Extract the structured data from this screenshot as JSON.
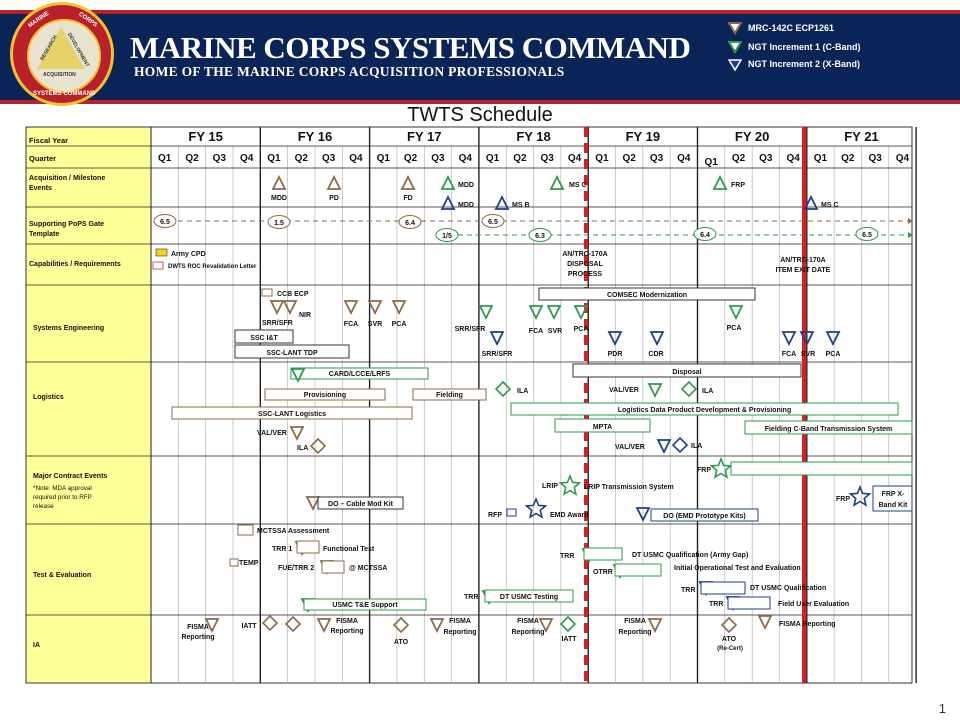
{
  "header": {
    "title": "MARINE CORPS SYSTEMS COMMAND",
    "subtitle": "HOME OF THE MARINE CORPS ACQUISITION PROFESSIONALS",
    "seal_text": [
      "MARINE",
      "CORPS",
      "RESEARCH",
      "DEVELOPMENT",
      "ACQUISITION",
      "SYSTEMS COMMAND"
    ],
    "legend": [
      {
        "label": "MRC-142C ECP1261",
        "color": "#8b6b4a",
        "icon": "triangle-down-icon"
      },
      {
        "label": "NGT Increment 1 (C-Band)",
        "color": "#2e9a4a",
        "icon": "triangle-down-icon"
      },
      {
        "label": "NGT Increment 2 (X-Band)",
        "color": "#1f3f8a",
        "icon": "triangle-down-icon"
      }
    ]
  },
  "chart_title": "TWTS Schedule",
  "page_number": "1",
  "colors": {
    "brown": "#8b6b4a",
    "green": "#2e9a4a",
    "blue": "#1f3f8a",
    "red": "#d81e1e",
    "label_bg": "#ffff99",
    "navy": "#0b2458"
  },
  "table": {
    "fiscal_year_label": "Fiscal Year",
    "quarter_label": "Quarter",
    "fiscal_years": [
      "FY 15",
      "FY 16",
      "FY 17",
      "FY 18",
      "FY 19",
      "FY 20",
      "FY 21"
    ],
    "quarters": [
      "Q1",
      "Q2",
      "Q3",
      "Q4"
    ],
    "rows": [
      "Acquisition / Milestone Events",
      "Supporting PoPS Gate Template",
      "Capabilities / Requirements",
      "Systems  Engineering",
      "Logistics",
      "Major Contract Events",
      "Test & Evaluation",
      "IA"
    ],
    "row_note": "*Note: MDA approval required prior to RFP release"
  },
  "milestones": {
    "brown": [
      "MDD",
      "PD",
      "FD"
    ],
    "green": [
      "MDD",
      "MS C",
      "FRP"
    ],
    "blue": [
      "MDD",
      "MS B",
      "MS C"
    ]
  },
  "pops": {
    "brown": [
      "6.5",
      "1.5",
      "6.4",
      "6.5"
    ],
    "green": [
      "1/5",
      "6.3",
      "6.4",
      "6.5"
    ]
  },
  "capabilities": {
    "items": [
      "Army  CPD",
      "DWTS ROC Revalidation Letter"
    ],
    "disposal": [
      "AN/TRC-170A",
      "DISPOSAL",
      "PROCESS"
    ],
    "exit": [
      "AN/TRC-170A",
      "ITEM  EXIT  DATE"
    ]
  },
  "systems_engineering": {
    "brown": [
      "CCB ECP",
      "SRR/SFR",
      "NIR",
      "FCA",
      "SVR",
      "PCA"
    ],
    "bars": [
      "SSC I&T",
      "SSC-LANT  TDP",
      "COMSEC  Modernization"
    ],
    "green": [
      "SRR/SFR",
      "FCA",
      "SVR",
      "PCA",
      "PCA"
    ],
    "blue": [
      "SRR/SFR",
      "PDR",
      "CDR",
      "FCA",
      "SVR",
      "PCA"
    ]
  },
  "logistics": {
    "bars": [
      "CARD/LCCE/LRFS",
      "Provisioning",
      "Fielding",
      "SSC-LANT  Logistics",
      "Disposal",
      "Logistics  Data  Product  Development  &  Provisioning",
      "MPTA",
      "Fielding  C-Band  Transmission  System"
    ],
    "labels": [
      "VAL/VER",
      "ILA",
      "ILA",
      "VAL/VER",
      "ILA",
      "VAL/VER",
      "ILA"
    ]
  },
  "contracts": {
    "brown": [
      "DO – Cable Mod Kit"
    ],
    "green": [
      "LRIP",
      "LRIP Transmission  System",
      "FRP"
    ],
    "blue": [
      "RFP",
      "EMD Award",
      "DO  (EMD  Prototype  Kits)",
      "FRP",
      "FRP X-",
      "Band Kit"
    ]
  },
  "test_eval": {
    "brown": [
      "MCTSSA  Assessment",
      "TEMP",
      "TRR  1",
      "Functional  Test",
      "FUE/TRR  2",
      "@ MCTSSA"
    ],
    "green": [
      "USMC T&E Support",
      "TRR",
      "DT USMC Testing",
      "TRR",
      "DT USMC Qualification   (Army  Gap)",
      "OTRR",
      "Initial  Operational  Test  and  Evaluation"
    ],
    "blue": [
      "TRR",
      "DT  USMC  Qualification",
      "TRR",
      "Field  User  Evaluation"
    ]
  },
  "ia": {
    "labels": [
      "FISMA",
      "Reporting",
      "IATT",
      "FISMA",
      "Reporting",
      "ATO",
      "FISMA",
      "Reporting",
      "FISMA",
      "Reporting",
      "IATT",
      "FISMA",
      "Reporting",
      "ATO",
      "(Re-Cert)",
      "FISMA  Reporting"
    ]
  }
}
